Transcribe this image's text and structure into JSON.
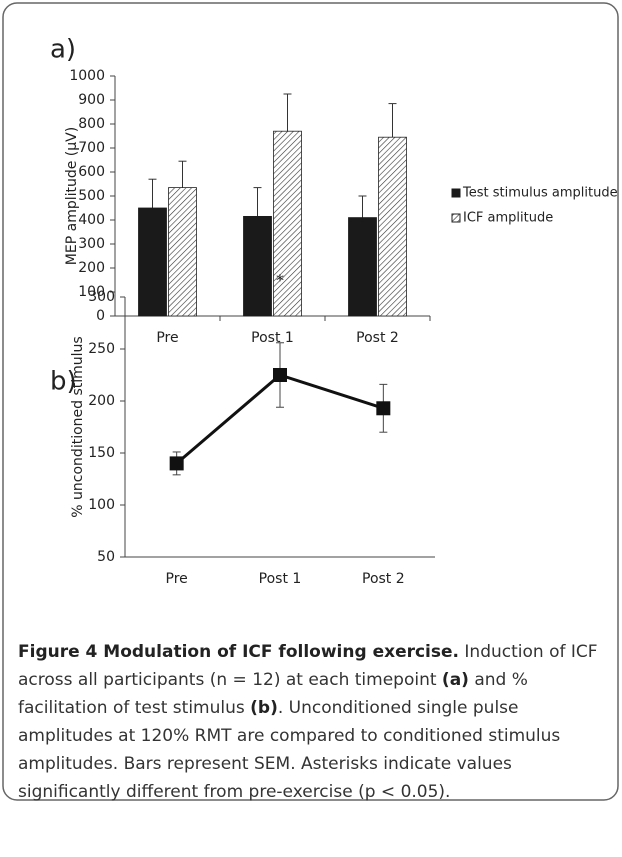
{
  "chart_data": [
    {
      "type": "bar",
      "title": "a)",
      "y_label": "MEP amplitude (μV)",
      "categories": [
        "Pre",
        "Post 1",
        "Post 2"
      ],
      "series": [
        {
          "name": "Test stimulus amplitude",
          "color": "#1a1a1a",
          "hatch": false,
          "values": [
            450,
            415,
            410
          ],
          "errors": [
            120,
            120,
            90
          ]
        },
        {
          "name": "ICF amplitude",
          "color": "#222222",
          "hatch": true,
          "values": [
            535,
            770,
            745
          ],
          "errors": [
            110,
            155,
            140
          ]
        }
      ],
      "ylim": [
        0,
        1000
      ],
      "yticks": [
        0,
        100,
        200,
        300,
        400,
        500,
        600,
        700,
        800,
        900,
        1000
      ],
      "legend": "right"
    },
    {
      "type": "line",
      "title": "b)",
      "y_label": "% unconditioned stimulus",
      "categories": [
        "Pre",
        "Post 1",
        "Post 2"
      ],
      "color": "#111111",
      "values": [
        140,
        225,
        193
      ],
      "errors": [
        11,
        31,
        23
      ],
      "annotations": [
        {
          "text": "*",
          "index": 1
        }
      ],
      "ylim": [
        50,
        300
      ],
      "yticks": [
        50,
        100,
        150,
        200,
        250,
        300
      ]
    }
  ],
  "caption": [
    "Figure 4 Modulation of ICF following exercise.",
    " Induction of ICF across all participants (n = 12) at each timepoint ",
    "(a)",
    " and % facilitation of test stimulus ",
    "(b)",
    ". Unconditioned single pulse amplitudes at 120% RMT are compared to conditioned stimulus amplitudes. Bars represent SEM. Asterisks indicate values significantly different from pre-exercise (p < 0.05)."
  ]
}
